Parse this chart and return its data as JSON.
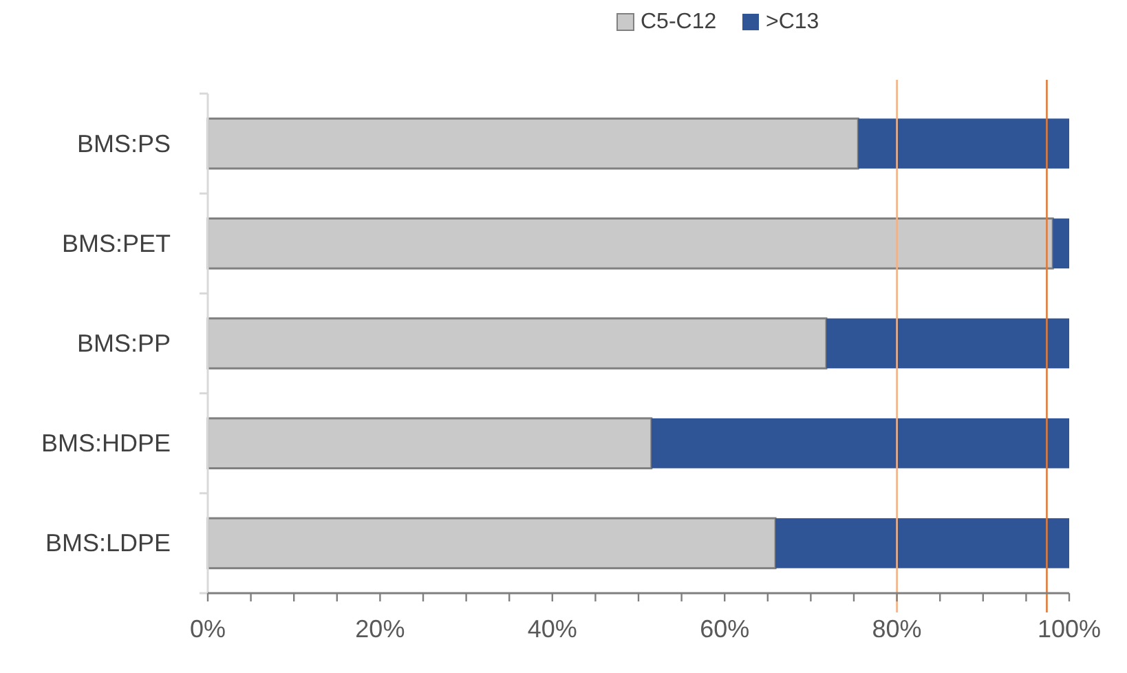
{
  "chart_data": {
    "type": "bar",
    "orientation": "horizontal",
    "stacked": true,
    "categories": [
      "BMS:PS",
      "BMS:PET",
      "BMS:PP",
      "BMS:HDPE",
      "BMS:LDPE"
    ],
    "series": [
      {
        "name": "C5-C12",
        "color": "#c9c9c9",
        "values": [
          75.5,
          98.1,
          71.8,
          51.5,
          65.9
        ]
      },
      {
        "name": ">C13",
        "color": "#2f5597",
        "values": [
          24.5,
          1.9,
          28.2,
          48.5,
          34.1
        ]
      }
    ],
    "xlim": [
      0,
      100
    ],
    "xticks": [
      {
        "value": 0,
        "label": "0%"
      },
      {
        "value": 5,
        "label": null
      },
      {
        "value": 10,
        "label": null
      },
      {
        "value": 15,
        "label": null
      },
      {
        "value": 20,
        "label": "20%"
      },
      {
        "value": 25,
        "label": null
      },
      {
        "value": 30,
        "label": null
      },
      {
        "value": 35,
        "label": null
      },
      {
        "value": 40,
        "label": "40%"
      },
      {
        "value": 45,
        "label": null
      },
      {
        "value": 50,
        "label": null
      },
      {
        "value": 55,
        "label": null
      },
      {
        "value": 60,
        "label": "60%"
      },
      {
        "value": 65,
        "label": null
      },
      {
        "value": 70,
        "label": null
      },
      {
        "value": 75,
        "label": null
      },
      {
        "value": 80,
        "label": "80%"
      },
      {
        "value": 85,
        "label": null
      },
      {
        "value": 90,
        "label": null
      },
      {
        "value": 95,
        "label": null
      },
      {
        "value": 100,
        "label": "100%"
      }
    ],
    "ref_lines": [
      {
        "axis": "x",
        "value": 80,
        "color": "#f4b183"
      },
      {
        "axis": "x",
        "value": 97.4,
        "color": "#e07b39"
      }
    ],
    "legend": "top",
    "grid": false
  }
}
